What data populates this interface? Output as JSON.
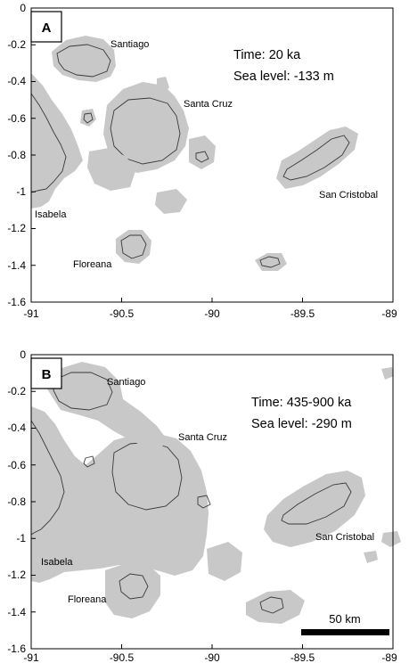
{
  "panels": [
    {
      "letter": "A",
      "time_text": "Time: 20 ka",
      "sea_level_text": "Sea level: -133 m",
      "islands": {
        "santiago": "Santiago",
        "santa_cruz": "Santa Cruz",
        "san_cristobal": "San Cristobal",
        "isabela": "Isabela",
        "floreana": "Floreana"
      },
      "x_ticks": [
        "-91",
        "-90.5",
        "-90",
        "-89.5",
        "-89"
      ],
      "y_ticks": [
        "0",
        "-0.2",
        "-0.4",
        "-0.6",
        "-0.8",
        "-1",
        "-1.2",
        "-1.4",
        "-1.6"
      ]
    },
    {
      "letter": "B",
      "time_text": "Time: 435-900 ka",
      "sea_level_text": "Sea level: -290 m",
      "islands": {
        "santiago": "Santiago",
        "santa_cruz": "Santa Cruz",
        "san_cristobal": "San Cristobal",
        "isabela": "Isabela",
        "floreana": "Floreana"
      },
      "x_ticks": [
        "-91",
        "-90.5",
        "-90",
        "-89.5",
        "-89"
      ],
      "y_ticks": [
        "0",
        "-0.2",
        "-0.4",
        "-0.6",
        "-0.8",
        "-1",
        "-1.2",
        "-1.4",
        "-1.6"
      ],
      "scale_bar_label": "50 km"
    }
  ],
  "colors": {
    "exposed_land": "#c8c8c8",
    "present_coastline": "#3a3a3a",
    "frame": "#000000"
  }
}
